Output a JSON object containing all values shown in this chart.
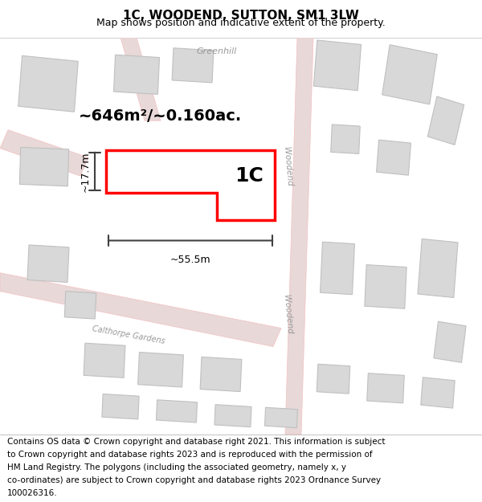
{
  "title": "1C, WOODEND, SUTTON, SM1 3LW",
  "subtitle": "Map shows position and indicative extent of the property.",
  "footer": "Contains OS data © Crown copyright and database right 2021. This information is subject to Crown copyright and database rights 2023 and is reproduced with the permission of HM Land Registry. The polygons (including the associated geometry, namely x, y co-ordinates) are subject to Crown copyright and database rights 2023 Ordnance Survey 100026316.",
  "label_area": "~646m²/~0.160ac.",
  "label_width": "~55.5m",
  "label_height": "~17.7m",
  "label_plot": "1C",
  "background_color": "#f5f0f0",
  "map_background": "#ffffff",
  "road_color": "#f5c0c0",
  "road_fill": "#f0d0d0",
  "building_fill": "#d8d8d8",
  "building_edge": "#c0c0c0",
  "plot_color": "#ff0000",
  "plot_fill": "#ffffff",
  "dim_color": "#404040",
  "text_color": "#000000",
  "road_label_color": "#888888",
  "title_fontsize": 11,
  "subtitle_fontsize": 9,
  "footer_fontsize": 7.5
}
